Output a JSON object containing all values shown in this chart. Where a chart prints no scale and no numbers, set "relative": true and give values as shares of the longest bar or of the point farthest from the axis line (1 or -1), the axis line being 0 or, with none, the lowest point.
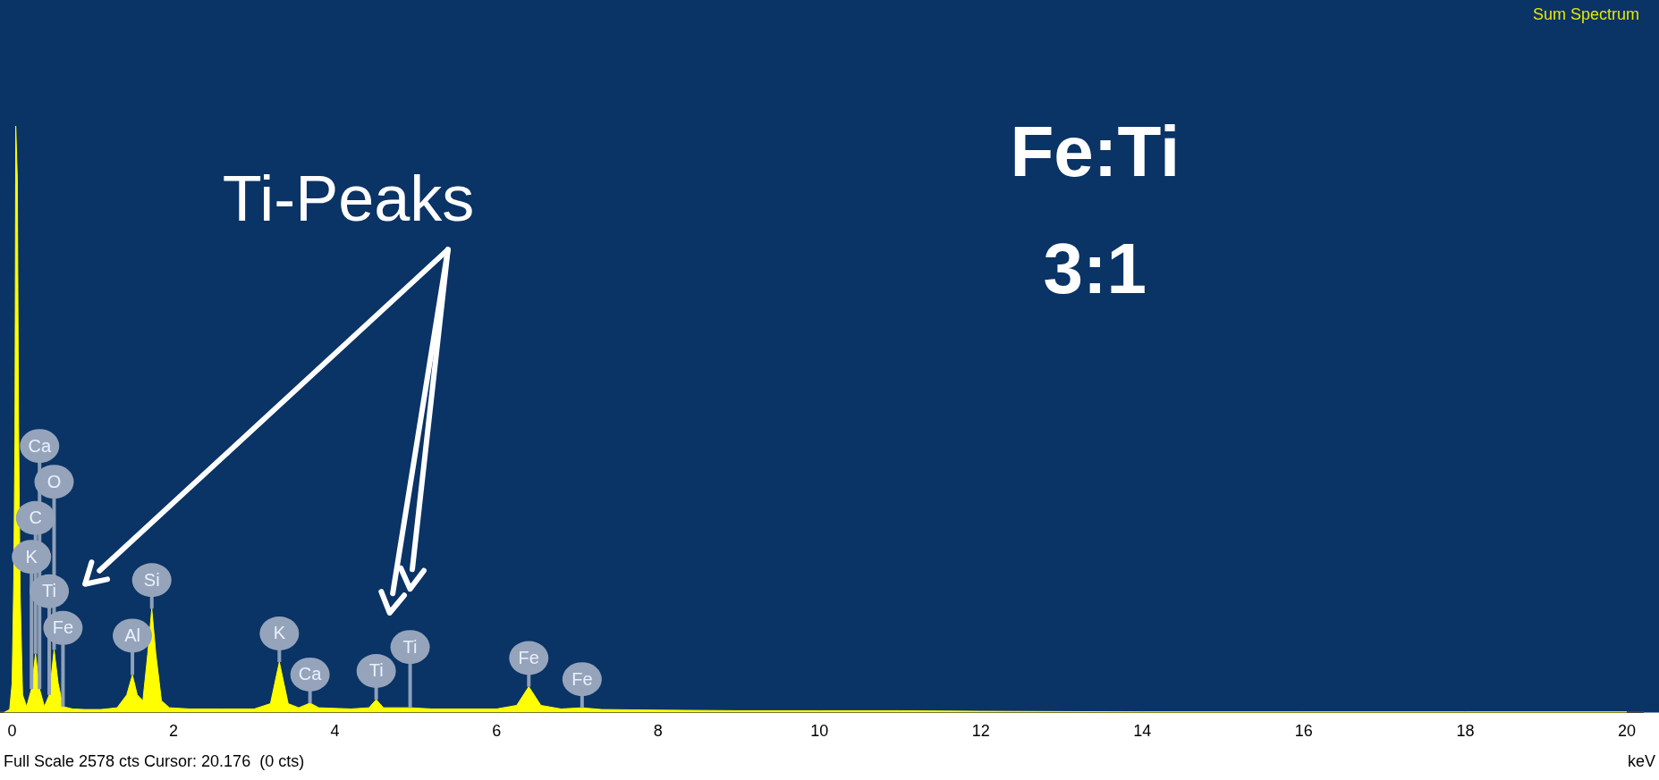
{
  "chart_data": {
    "type": "area",
    "title": "Sum Spectrum",
    "xlabel": "keV",
    "relative": true,
    "color": "#ffff00",
    "x": [
      -0.1,
      -0.03,
      0.0,
      0.02,
      0.035,
      0.045,
      0.065,
      0.08,
      0.1,
      0.13,
      0.18,
      0.24,
      0.29,
      0.34,
      0.4,
      0.46,
      0.52,
      0.57,
      0.63,
      0.75,
      0.9,
      1.1,
      1.3,
      1.42,
      1.49,
      1.55,
      1.62,
      1.68,
      1.73,
      1.78,
      1.85,
      1.95,
      2.2,
      2.6,
      3.0,
      3.2,
      3.31,
      3.42,
      3.55,
      3.69,
      3.8,
      4.2,
      4.42,
      4.51,
      4.6,
      4.93,
      5.2,
      6.0,
      6.25,
      6.4,
      6.55,
      6.8,
      7.06,
      7.3,
      8.0,
      9.0,
      10.0,
      11.0,
      12.0,
      14.0,
      16.0,
      18.0,
      20.0
    ],
    "values": [
      0,
      0.005,
      0.05,
      0.22,
      0.47,
      1.0,
      0.91,
      0.49,
      0.2,
      0.03,
      0.01,
      0.04,
      0.1,
      0.04,
      0.01,
      0.03,
      0.107,
      0.05,
      0.01,
      0.006,
      0.005,
      0.005,
      0.008,
      0.03,
      0.064,
      0.03,
      0.02,
      0.1,
      0.177,
      0.1,
      0.02,
      0.008,
      0.006,
      0.006,
      0.006,
      0.015,
      0.086,
      0.015,
      0.008,
      0.016,
      0.008,
      0.006,
      0.008,
      0.022,
      0.008,
      0.008,
      0.006,
      0.006,
      0.012,
      0.044,
      0.012,
      0.006,
      0.008,
      0.005,
      0.004,
      0.003,
      0.003,
      0.003,
      0.002,
      0.001,
      0.001,
      0.001,
      0.001
    ],
    "xlim": [
      -0.15,
      20.2
    ],
    "xticks": [
      0,
      2,
      4,
      6,
      8,
      10,
      12,
      14,
      16,
      18,
      20
    ],
    "grid": false,
    "legend": false,
    "annotations": [
      {
        "text": "Fe",
        "x": 0.63,
        "y": 0.01
      },
      {
        "text": "Ti",
        "x": 0.46,
        "y": 0.03
      },
      {
        "text": "K",
        "x": 0.24,
        "y": 0.04
      },
      {
        "text": "C",
        "x": 0.29,
        "y": 0.1
      },
      {
        "text": "O",
        "x": 0.52,
        "y": 0.107
      },
      {
        "text": "Ca",
        "x": 0.34,
        "y": 0.04
      },
      {
        "text": "Al",
        "x": 1.49,
        "y": 0.064
      },
      {
        "text": "Si",
        "x": 1.73,
        "y": 0.177
      },
      {
        "text": "K",
        "x": 3.31,
        "y": 0.086
      },
      {
        "text": "Ca",
        "x": 3.69,
        "y": 0.016
      },
      {
        "text": "Ti",
        "x": 4.51,
        "y": 0.022
      },
      {
        "text": "Ti",
        "x": 4.93,
        "y": 0.008
      },
      {
        "text": "Fe",
        "x": 6.4,
        "y": 0.044
      },
      {
        "text": "Fe",
        "x": 7.06,
        "y": 0.008
      },
      "Ti-Peaks",
      "Fe:Ti",
      "3:1",
      "Full Scale 2578 cts Cursor: 20.176  (0 cts)"
    ]
  }
}
